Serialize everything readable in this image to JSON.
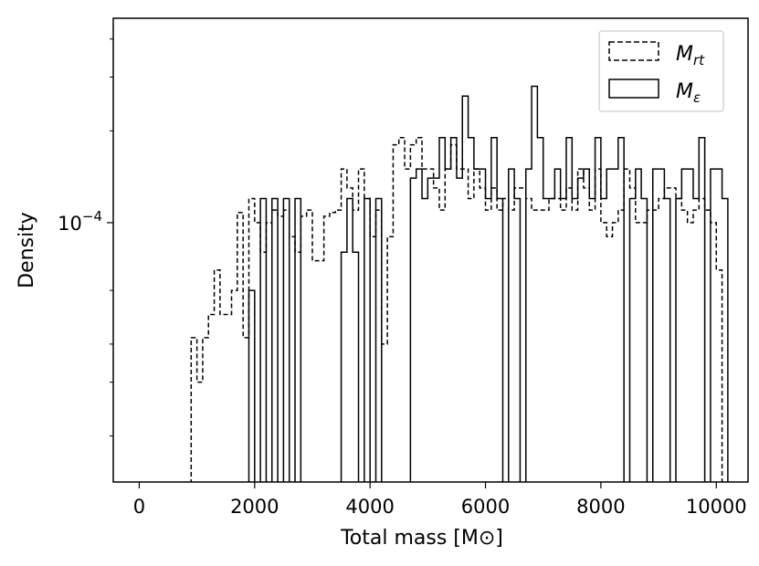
{
  "chart_data": {
    "type": "histogram",
    "xlabel": "Total mass [M⊙]",
    "ylabel": "Density",
    "xlim": [
      -450,
      10550
    ],
    "ylim_log10": [
      -4.85,
      -3.33
    ],
    "y_scale": "log",
    "grid": false,
    "legend_position": "top-right",
    "x_ticks": [
      0,
      2000,
      4000,
      6000,
      8000,
      10000
    ],
    "x_tick_labels": [
      "0",
      "2000",
      "4000",
      "6000",
      "8000",
      "10000"
    ],
    "y_tick_labels": [
      {
        "base": "10",
        "exp": "−4",
        "value": 0.0001
      }
    ],
    "bin_width": 100,
    "series": [
      {
        "name": "M_rt",
        "legend_main": "M",
        "legend_sub": "rt",
        "linestyle": "dashed",
        "bins_start": 900,
        "values": [
          4.2e-05,
          3e-05,
          4.2e-05,
          5e-05,
          7e-05,
          5e-05,
          5e-05,
          6e-05,
          0.000108,
          4.2e-05,
          0.00012,
          0.0001,
          8e-05,
          0.0001,
          0.00011,
          0.000105,
          0.00011,
          9e-05,
          8e-05,
          0.000105,
          0.00011,
          7.5e-05,
          7.5e-05,
          0.000105,
          0.000108,
          0.00011,
          0.00015,
          0.00013,
          0.00011,
          0.00015,
          0.00012,
          9e-05,
          0.00011,
          4e-05,
          9e-05,
          0.00018,
          0.00019,
          0.00015,
          0.00018,
          0.00019,
          0.00015,
          0.00015,
          0.00013,
          0.00011,
          0.00015,
          0.00018,
          0.00015,
          0.00015,
          0.00012,
          0.00015,
          0.00013,
          0.00011,
          0.00013,
          0.00011,
          0.00012,
          0.00011,
          0.00013,
          0.00013,
          0.00012,
          0.00011,
          0.00011,
          0.00011,
          0.00012,
          0.00012,
          0.00011,
          0.00013,
          0.00011,
          0.00015,
          0.00013,
          0.00011,
          0.00015,
          0.0001,
          9e-05,
          0.0001,
          0.00011,
          0.00015,
          0.00013,
          0.0001,
          0.0001,
          0.00011,
          0.00011,
          0.00012,
          0.00013,
          0.00013,
          0.00012,
          0.00011,
          0.0001,
          0.00011,
          0.00012,
          0.00011,
          0.0001,
          7e-05
        ]
      },
      {
        "name": "M_ε",
        "legend_main": "M",
        "legend_sub": "ε",
        "linestyle": "solid",
        "bins_start": 1800,
        "values": [
          0,
          6e-05,
          0,
          0.00012,
          0,
          0.00012,
          0,
          0.00012,
          0,
          0.00012,
          0,
          0,
          0,
          0,
          0,
          0,
          0,
          8e-05,
          0.00012,
          8e-05,
          0,
          0.00012,
          0,
          0.00012,
          0,
          0,
          0,
          0,
          0,
          0.00014,
          0.00015,
          0.00012,
          0.00014,
          0.00014,
          0.00019,
          0.00015,
          0.00019,
          0.00014,
          0.00026,
          0.00019,
          0.00015,
          0.00015,
          0.00012,
          0.00019,
          0.00012,
          0,
          0.00015,
          0.00012,
          0,
          0.00015,
          0.00028,
          0.00019,
          0.00012,
          0.00012,
          0.00015,
          0.00012,
          0.00019,
          0.00012,
          0.00014,
          0.00015,
          0.00012,
          0.00019,
          0.00012,
          0.00015,
          0.00015,
          0.00019,
          0,
          0.00012,
          0.00015,
          0.00012,
          0,
          0.00015,
          0.00015,
          0.00012,
          0,
          0.00012,
          0.00015,
          0.00015,
          0.00012,
          0.00019,
          0,
          0.00015,
          0.00015,
          0.00012
        ]
      }
    ]
  },
  "colors": {
    "line": "#000000",
    "background": "#ffffff"
  }
}
